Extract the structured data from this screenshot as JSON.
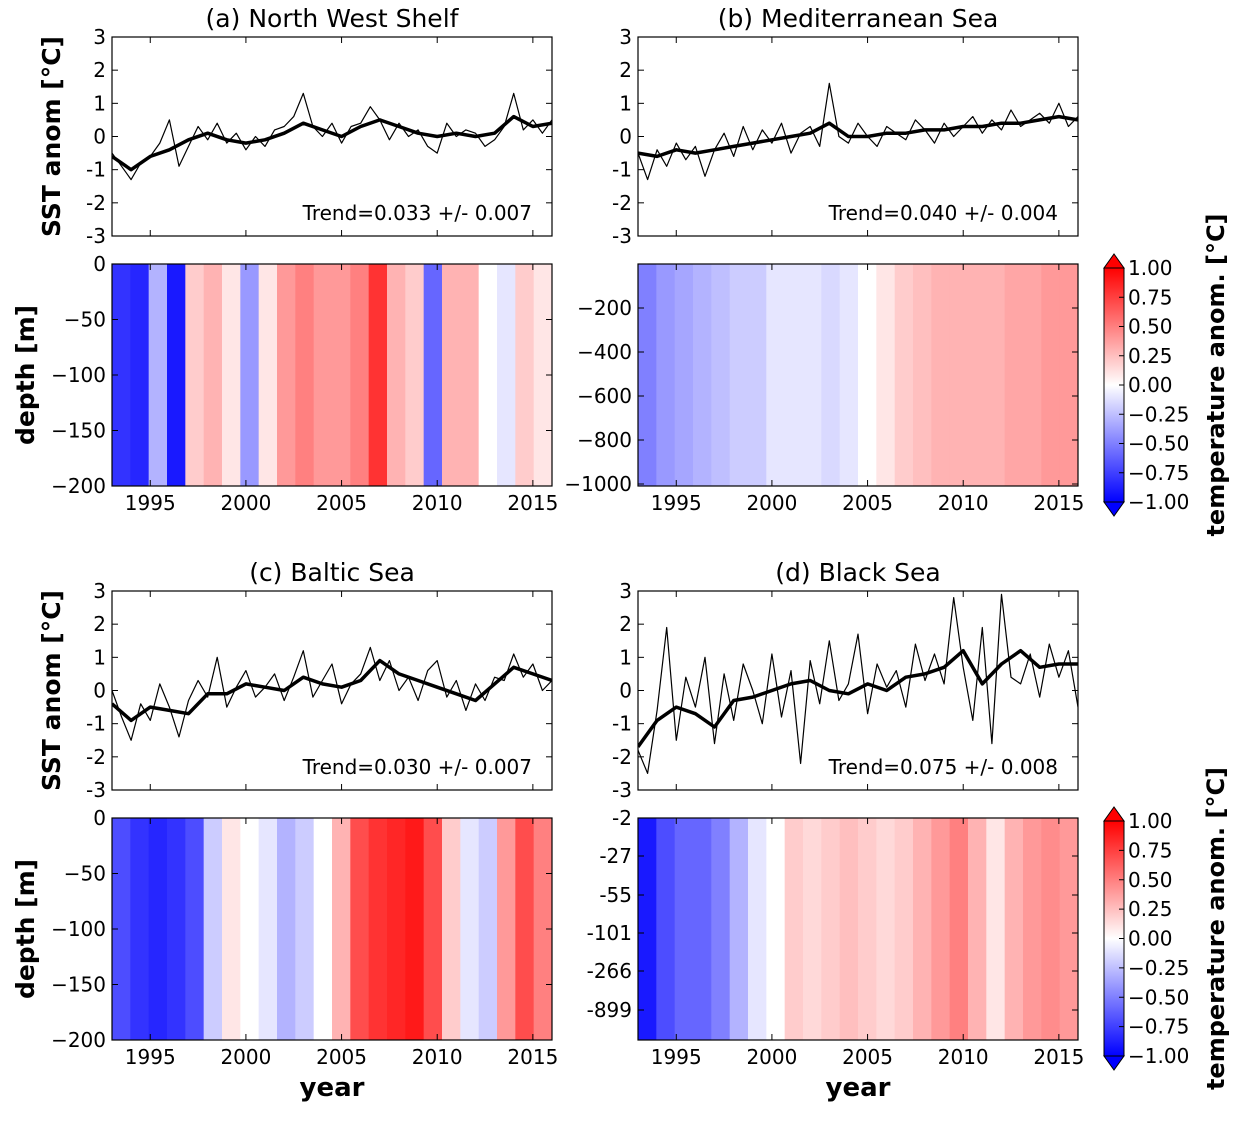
{
  "chart_data": [
    {
      "type": "line",
      "panel": "a",
      "title": "(a) North West Shelf",
      "ylabel": "SST anom [°C]",
      "xlim": [
        1993,
        2016
      ],
      "ylim": [
        -3,
        3
      ],
      "yticks": [
        3,
        2,
        1,
        0,
        -1,
        -2,
        -3
      ],
      "trend_label": "Trend=0.033 +/- 0.007",
      "series": [
        {
          "style": "thin",
          "x": [
            1993,
            1993.5,
            1994,
            1994.5,
            1995,
            1995.5,
            1996,
            1996.5,
            1997,
            1997.5,
            1998,
            1998.5,
            1999,
            1999.5,
            2000,
            2000.5,
            2001,
            2001.5,
            2002,
            2002.5,
            2003,
            2003.5,
            2004,
            2004.5,
            2005,
            2005.5,
            2006,
            2006.5,
            2007,
            2007.5,
            2008,
            2008.5,
            2009,
            2009.5,
            2010,
            2010.5,
            2011,
            2011.5,
            2012,
            2012.5,
            2013,
            2013.5,
            2014,
            2014.5,
            2015,
            2015.5,
            2016
          ],
          "values": [
            -0.5,
            -0.9,
            -1.3,
            -0.8,
            -0.6,
            -0.2,
            0.5,
            -0.9,
            -0.3,
            0.3,
            -0.1,
            0.4,
            -0.2,
            0.1,
            -0.4,
            0.0,
            -0.3,
            0.2,
            0.3,
            0.6,
            1.3,
            0.3,
            0.0,
            0.4,
            -0.2,
            0.3,
            0.4,
            0.9,
            0.5,
            -0.1,
            0.4,
            0.0,
            0.2,
            -0.3,
            -0.5,
            0.4,
            0.0,
            0.2,
            0.1,
            -0.3,
            -0.1,
            0.3,
            1.3,
            0.2,
            0.5,
            0.1,
            0.5
          ]
        },
        {
          "style": "thick",
          "x": [
            1993,
            1994,
            1995,
            1996,
            1997,
            1998,
            1999,
            2000,
            2001,
            2002,
            2003,
            2004,
            2005,
            2006,
            2007,
            2008,
            2009,
            2010,
            2011,
            2012,
            2013,
            2014,
            2015,
            2016
          ],
          "values": [
            -0.6,
            -1.0,
            -0.6,
            -0.4,
            -0.1,
            0.1,
            -0.1,
            -0.2,
            -0.1,
            0.1,
            0.4,
            0.2,
            0.0,
            0.3,
            0.5,
            0.3,
            0.1,
            0.0,
            0.1,
            0.0,
            0.1,
            0.6,
            0.3,
            0.4
          ]
        }
      ]
    },
    {
      "type": "line",
      "panel": "b",
      "title": "(b) Mediterranean Sea",
      "xlim": [
        1993,
        2016
      ],
      "ylim": [
        -3,
        3
      ],
      "yticks": [
        3,
        2,
        1,
        0,
        -1,
        -2,
        -3
      ],
      "trend_label": "Trend=0.040 +/- 0.004",
      "series": [
        {
          "style": "thin",
          "x": [
            1993,
            1993.5,
            1994,
            1994.5,
            1995,
            1995.5,
            1996,
            1996.5,
            1997,
            1997.5,
            1998,
            1998.5,
            1999,
            1999.5,
            2000,
            2000.5,
            2001,
            2001.5,
            2002,
            2002.5,
            2003,
            2003.5,
            2004,
            2004.5,
            2005,
            2005.5,
            2006,
            2006.5,
            2007,
            2007.5,
            2008,
            2008.5,
            2009,
            2009.5,
            2010,
            2010.5,
            2011,
            2011.5,
            2012,
            2012.5,
            2013,
            2013.5,
            2014,
            2014.5,
            2015,
            2015.5,
            2016
          ],
          "values": [
            -0.5,
            -1.3,
            -0.4,
            -0.9,
            -0.2,
            -0.7,
            -0.3,
            -1.2,
            -0.4,
            0.1,
            -0.6,
            0.3,
            -0.4,
            0.2,
            -0.2,
            0.4,
            -0.5,
            0.1,
            0.3,
            -0.3,
            1.6,
            0.0,
            -0.2,
            0.4,
            0.0,
            -0.3,
            0.3,
            0.1,
            -0.1,
            0.5,
            0.2,
            -0.2,
            0.4,
            0.0,
            0.3,
            0.6,
            0.1,
            0.5,
            0.2,
            0.8,
            0.3,
            0.5,
            0.7,
            0.4,
            1.0,
            0.3,
            0.6
          ]
        },
        {
          "style": "thick",
          "x": [
            1993,
            1994,
            1995,
            1996,
            1997,
            1998,
            1999,
            2000,
            2001,
            2002,
            2003,
            2004,
            2005,
            2006,
            2007,
            2008,
            2009,
            2010,
            2011,
            2012,
            2013,
            2014,
            2015,
            2016
          ],
          "values": [
            -0.5,
            -0.6,
            -0.4,
            -0.5,
            -0.4,
            -0.3,
            -0.2,
            -0.1,
            0.0,
            0.1,
            0.4,
            0.0,
            0.0,
            0.1,
            0.1,
            0.2,
            0.2,
            0.3,
            0.3,
            0.4,
            0.4,
            0.5,
            0.6,
            0.5
          ]
        }
      ]
    },
    {
      "type": "line",
      "panel": "c",
      "title": "(c) Baltic Sea",
      "ylabel": "SST anom [°C]",
      "xlim": [
        1993,
        2016
      ],
      "ylim": [
        -3,
        3
      ],
      "yticks": [
        3,
        2,
        1,
        0,
        -1,
        -2,
        -3
      ],
      "trend_label": "Trend=0.030 +/- 0.007",
      "series": [
        {
          "style": "thin",
          "x": [
            1993,
            1993.5,
            1994,
            1994.5,
            1995,
            1995.5,
            1996,
            1996.5,
            1997,
            1997.5,
            1998,
            1998.5,
            1999,
            1999.5,
            2000,
            2000.5,
            2001,
            2001.5,
            2002,
            2002.5,
            2003,
            2003.5,
            2004,
            2004.5,
            2005,
            2005.5,
            2006,
            2006.5,
            2007,
            2007.5,
            2008,
            2008.5,
            2009,
            2009.5,
            2010,
            2010.5,
            2011,
            2011.5,
            2012,
            2012.5,
            2013,
            2013.5,
            2014,
            2014.5,
            2015,
            2015.5,
            2016
          ],
          "values": [
            0.0,
            -0.8,
            -1.5,
            -0.4,
            -0.9,
            0.2,
            -0.5,
            -1.4,
            -0.3,
            0.3,
            -0.2,
            1.0,
            -0.5,
            0.1,
            0.6,
            -0.2,
            0.1,
            0.5,
            -0.3,
            0.4,
            1.2,
            -0.2,
            0.3,
            0.8,
            -0.4,
            0.2,
            0.5,
            1.3,
            0.3,
            0.9,
            0.0,
            0.4,
            -0.3,
            0.6,
            0.9,
            -0.2,
            0.3,
            -0.6,
            0.2,
            -0.3,
            0.4,
            0.3,
            1.1,
            0.4,
            0.8,
            0.0,
            0.3
          ]
        },
        {
          "style": "thick",
          "x": [
            1993,
            1994,
            1995,
            1996,
            1997,
            1998,
            1999,
            2000,
            2001,
            2002,
            2003,
            2004,
            2005,
            2006,
            2007,
            2008,
            2009,
            2010,
            2011,
            2012,
            2013,
            2014,
            2015,
            2016
          ],
          "values": [
            -0.4,
            -0.9,
            -0.5,
            -0.6,
            -0.7,
            -0.1,
            -0.1,
            0.2,
            0.1,
            0.0,
            0.4,
            0.2,
            0.1,
            0.3,
            0.9,
            0.5,
            0.3,
            0.1,
            -0.1,
            -0.3,
            0.2,
            0.7,
            0.5,
            0.3
          ]
        }
      ]
    },
    {
      "type": "line",
      "panel": "d",
      "title": "(d) Black Sea",
      "xlim": [
        1993,
        2016
      ],
      "ylim": [
        -3,
        3
      ],
      "yticks": [
        3,
        2,
        1,
        0,
        -1,
        -2,
        -3
      ],
      "trend_label": "Trend=0.075 +/- 0.008",
      "series": [
        {
          "style": "thin",
          "x": [
            1993,
            1993.5,
            1994,
            1994.5,
            1995,
            1995.5,
            1996,
            1996.5,
            1997,
            1997.5,
            1998,
            1998.5,
            1999,
            1999.5,
            2000,
            2000.5,
            2001,
            2001.5,
            2002,
            2002.5,
            2003,
            2003.5,
            2004,
            2004.5,
            2005,
            2005.5,
            2006,
            2006.5,
            2007,
            2007.5,
            2008,
            2008.5,
            2009,
            2009.5,
            2010,
            2010.5,
            2011,
            2011.5,
            2012,
            2012.5,
            2013,
            2013.5,
            2014,
            2014.5,
            2015,
            2015.5,
            2016
          ],
          "values": [
            -1.8,
            -2.5,
            -0.6,
            1.9,
            -1.5,
            0.4,
            -0.5,
            1.0,
            -1.6,
            0.5,
            -0.9,
            0.8,
            0.0,
            -1.0,
            1.1,
            -0.8,
            0.6,
            -2.2,
            0.9,
            -0.4,
            1.5,
            -0.3,
            0.2,
            1.7,
            -0.7,
            0.8,
            0.1,
            0.6,
            -0.5,
            1.4,
            0.3,
            1.1,
            0.2,
            2.8,
            0.7,
            -0.9,
            1.9,
            -1.6,
            2.9,
            0.4,
            0.2,
            1.1,
            -0.2,
            1.4,
            0.4,
            1.2,
            -0.5
          ]
        },
        {
          "style": "thick",
          "x": [
            1993,
            1994,
            1995,
            1996,
            1997,
            1998,
            1999,
            2000,
            2001,
            2002,
            2003,
            2004,
            2005,
            2006,
            2007,
            2008,
            2009,
            2010,
            2011,
            2012,
            2013,
            2014,
            2015,
            2016
          ],
          "values": [
            -1.7,
            -0.9,
            -0.5,
            -0.7,
            -1.1,
            -0.3,
            -0.2,
            0.0,
            0.2,
            0.3,
            0.0,
            -0.1,
            0.2,
            0.0,
            0.4,
            0.5,
            0.7,
            1.2,
            0.2,
            0.8,
            1.2,
            0.7,
            0.8,
            0.8
          ]
        }
      ]
    },
    {
      "type": "heatmap",
      "panel": "a-depth",
      "ylabel": "depth [m]",
      "xlim": [
        1993,
        2016
      ],
      "yticks": [
        "0",
        "−50",
        "−100",
        "−150",
        "−200"
      ],
      "xticks": [
        "1995",
        "2000",
        "2005",
        "2010",
        "2015"
      ],
      "year_anomalies": [
        -0.8,
        -0.85,
        -0.3,
        -0.9,
        0.2,
        0.3,
        0.1,
        -0.4,
        0.1,
        0.4,
        0.5,
        0.4,
        0.4,
        0.5,
        0.8,
        0.3,
        0.2,
        -0.6,
        0.3,
        0.3,
        0.0,
        -0.1,
        0.2,
        0.1
      ]
    },
    {
      "type": "heatmap",
      "panel": "b-depth",
      "xlim": [
        1993,
        2016
      ],
      "yticks": [
        "−200",
        "−400",
        "−600",
        "−800",
        "−1000"
      ],
      "xticks": [
        "1995",
        "2000",
        "2005",
        "2010",
        "2015"
      ],
      "year_anomalies": [
        -0.5,
        -0.4,
        -0.35,
        -0.3,
        -0.25,
        -0.2,
        -0.2,
        -0.1,
        -0.1,
        -0.1,
        -0.15,
        -0.1,
        0.0,
        0.1,
        0.2,
        0.25,
        0.3,
        0.3,
        0.3,
        0.3,
        0.35,
        0.35,
        0.4,
        0.4
      ]
    },
    {
      "type": "heatmap",
      "panel": "c-depth",
      "ylabel": "depth [m]",
      "xlabel": "year",
      "xlim": [
        1993,
        2016
      ],
      "yticks": [
        "0",
        "−50",
        "−100",
        "−150",
        "−200"
      ],
      "xticks": [
        "1995",
        "2000",
        "2005",
        "2010",
        "2015"
      ],
      "year_anomalies": [
        -0.7,
        -0.8,
        -0.85,
        -0.8,
        -0.7,
        -0.2,
        0.1,
        0.0,
        -0.1,
        -0.3,
        -0.2,
        0.0,
        0.3,
        0.7,
        0.8,
        0.85,
        0.9,
        0.7,
        0.2,
        -0.1,
        -0.2,
        0.4,
        0.7,
        0.5
      ]
    },
    {
      "type": "heatmap",
      "panel": "d-depth",
      "xlabel": "year",
      "xlim": [
        1993,
        2016
      ],
      "yticks": [
        "-2",
        "-27",
        "-55",
        "-101",
        "-266",
        "-899"
      ],
      "xticks": [
        "1995",
        "2000",
        "2005",
        "2010",
        "2015"
      ],
      "year_anomalies": [
        -0.9,
        -0.7,
        -0.6,
        -0.6,
        -0.5,
        -0.3,
        -0.1,
        0.0,
        0.2,
        0.15,
        0.2,
        0.25,
        0.2,
        0.15,
        0.2,
        0.3,
        0.4,
        0.5,
        0.3,
        0.1,
        0.3,
        0.4,
        0.45,
        0.4
      ]
    }
  ],
  "colorbar": {
    "label": "temperature anom. [°C]",
    "range": [
      -1.0,
      1.0
    ],
    "ticks": [
      "1.00",
      "0.75",
      "0.50",
      "0.25",
      "0.00",
      "−0.25",
      "−0.50",
      "−0.75",
      "−1.00"
    ],
    "colormap": [
      "#0000ff",
      "#ffffff",
      "#ff0000"
    ]
  }
}
